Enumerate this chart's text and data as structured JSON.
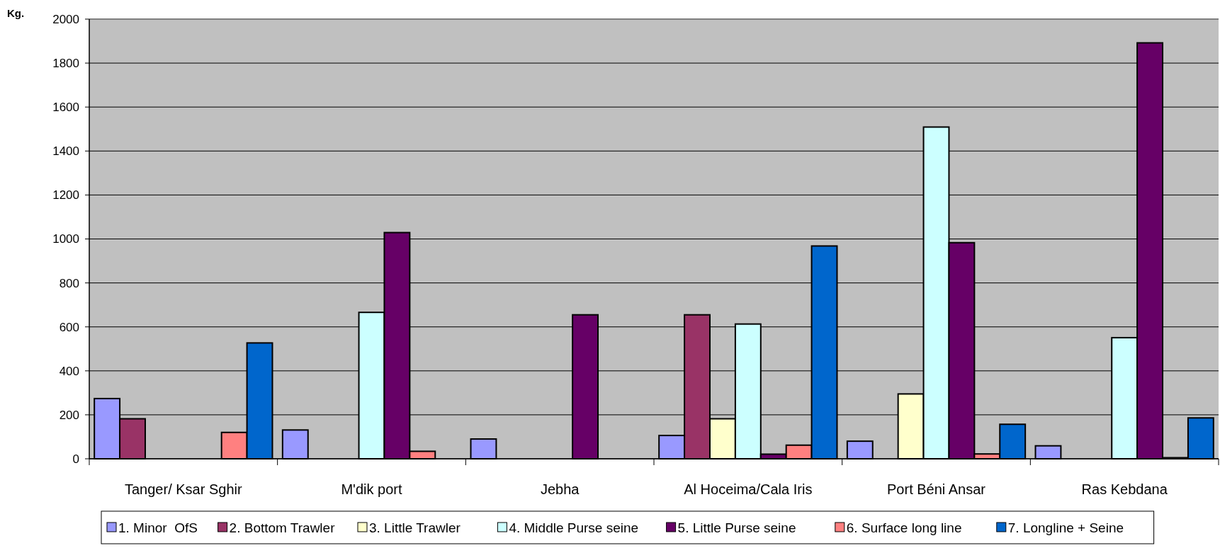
{
  "chart_data": {
    "type": "bar",
    "ylabel": "Kg.",
    "categories": [
      "Tanger/ Ksar Sghir",
      "M'dik port",
      "Jebha",
      "Al Hoceima/Cala Iris",
      "Port Béni Ansar",
      "Ras Kebdana"
    ],
    "series": [
      {
        "name": "1. Minor  OfS",
        "color": "#9999ff",
        "values": [
          274,
          131,
          90,
          106,
          80,
          59
        ]
      },
      {
        "name": "2. Bottom Trawler",
        "color": "#993366",
        "values": [
          182,
          null,
          null,
          655,
          null,
          null
        ]
      },
      {
        "name": "3. Little Trawler",
        "color": "#ffffcc",
        "values": [
          null,
          null,
          null,
          182,
          295,
          null
        ]
      },
      {
        "name": "4. Middle Purse seine",
        "color": "#ccffff",
        "values": [
          null,
          666,
          null,
          613,
          1509,
          551
        ]
      },
      {
        "name": "5. Little Purse seine",
        "color": "#660066",
        "values": [
          null,
          1029,
          655,
          21,
          983,
          1892
        ]
      },
      {
        "name": "6. Surface long line",
        "color": "#ff8080",
        "values": [
          120,
          34,
          null,
          62,
          22,
          5
        ]
      },
      {
        "name": "7. Longline + Seine",
        "color": "#0066cc",
        "values": [
          527,
          null,
          null,
          968,
          157,
          186
        ]
      }
    ],
    "ylim": [
      0,
      2000
    ],
    "yticks": [
      0,
      200,
      400,
      600,
      800,
      1000,
      1200,
      1400,
      1600,
      1800,
      2000
    ],
    "grid": "y",
    "legend": "bottom"
  }
}
